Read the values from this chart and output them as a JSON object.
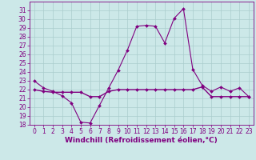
{
  "xlabel": "Windchill (Refroidissement éolien,°C)",
  "x": [
    0,
    1,
    2,
    3,
    4,
    5,
    6,
    7,
    8,
    9,
    10,
    11,
    12,
    13,
    14,
    15,
    16,
    17,
    18,
    19,
    20,
    21,
    22,
    23
  ],
  "temp": [
    23,
    22.2,
    21.8,
    21.3,
    20.5,
    18.3,
    18.2,
    20.2,
    22.2,
    24.2,
    26.5,
    29.2,
    29.3,
    29.2,
    27.3,
    30.1,
    31.2,
    24.3,
    22.5,
    21.8,
    22.3,
    21.8,
    22.2,
    21.2
  ],
  "windchill": [
    22,
    21.8,
    21.7,
    21.7,
    21.7,
    21.7,
    21.2,
    21.2,
    21.8,
    22,
    22,
    22,
    22,
    22,
    22,
    22,
    22,
    22,
    22.3,
    21.2,
    21.2,
    21.2,
    21.2,
    21.2
  ],
  "line_color": "#800080",
  "bg_color": "#cce8e8",
  "grid_color": "#aacccc",
  "ylim": [
    18,
    32
  ],
  "xlim": [
    -0.5,
    23.5
  ],
  "yticks": [
    18,
    19,
    20,
    21,
    22,
    23,
    24,
    25,
    26,
    27,
    28,
    29,
    30,
    31
  ],
  "xticks": [
    0,
    1,
    2,
    3,
    4,
    5,
    6,
    7,
    8,
    9,
    10,
    11,
    12,
    13,
    14,
    15,
    16,
    17,
    18,
    19,
    20,
    21,
    22,
    23
  ],
  "tick_fontsize": 5.5,
  "xlabel_fontsize": 6.5
}
